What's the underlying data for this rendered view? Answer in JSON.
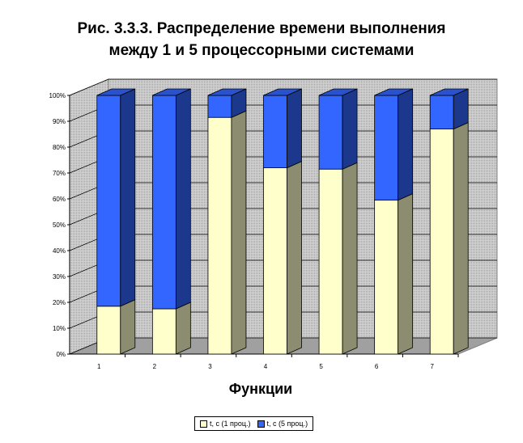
{
  "chart_data": {
    "type": "bar",
    "stacked": "percent",
    "title_line1": "Рис. 3.3.3. Распределение времени выполнения",
    "title_line2": "между 1 и 5 процессорными системами",
    "xlabel": "Функции",
    "ylabel": "",
    "ylim": [
      0,
      100
    ],
    "yticks": [
      "0%",
      "10%",
      "20%",
      "30%",
      "40%",
      "50%",
      "60%",
      "70%",
      "80%",
      "90%",
      "100%"
    ],
    "categories": [
      "1",
      "2",
      "3",
      "4",
      "5",
      "6",
      "7"
    ],
    "series": [
      {
        "name": "t, c (1 проц.)",
        "values": [
          18.5,
          17.5,
          91.5,
          72,
          71.5,
          59.5,
          87
        ],
        "color": "#ffffcc"
      },
      {
        "name": "t, c (5 проц.)",
        "values": [
          81.5,
          82.5,
          8.5,
          28,
          28.5,
          40.5,
          13
        ],
        "color": "#3366ff"
      }
    ],
    "grid": true,
    "legend_position": "bottom"
  }
}
